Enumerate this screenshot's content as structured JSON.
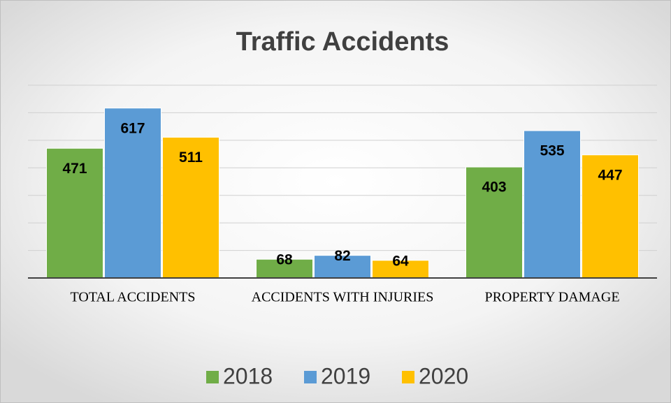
{
  "chart_data": {
    "type": "bar",
    "title": "Traffic Accidents",
    "categories": [
      "TOTAL ACCIDENTS",
      "ACCIDENTS WITH INJURIES",
      "PROPERTY DAMAGE"
    ],
    "series": [
      {
        "name": "2018",
        "color": "#70ad47",
        "values": [
          471,
          68,
          403
        ]
      },
      {
        "name": "2019",
        "color": "#5b9bd5",
        "values": [
          617,
          82,
          535
        ]
      },
      {
        "name": "2020",
        "color": "#ffc000",
        "values": [
          511,
          64,
          447
        ]
      }
    ],
    "ylim": [
      0,
      700
    ],
    "yticks": [
      0,
      100,
      200,
      300,
      400,
      500,
      600,
      700
    ],
    "grid": true,
    "legend": "bottom"
  }
}
